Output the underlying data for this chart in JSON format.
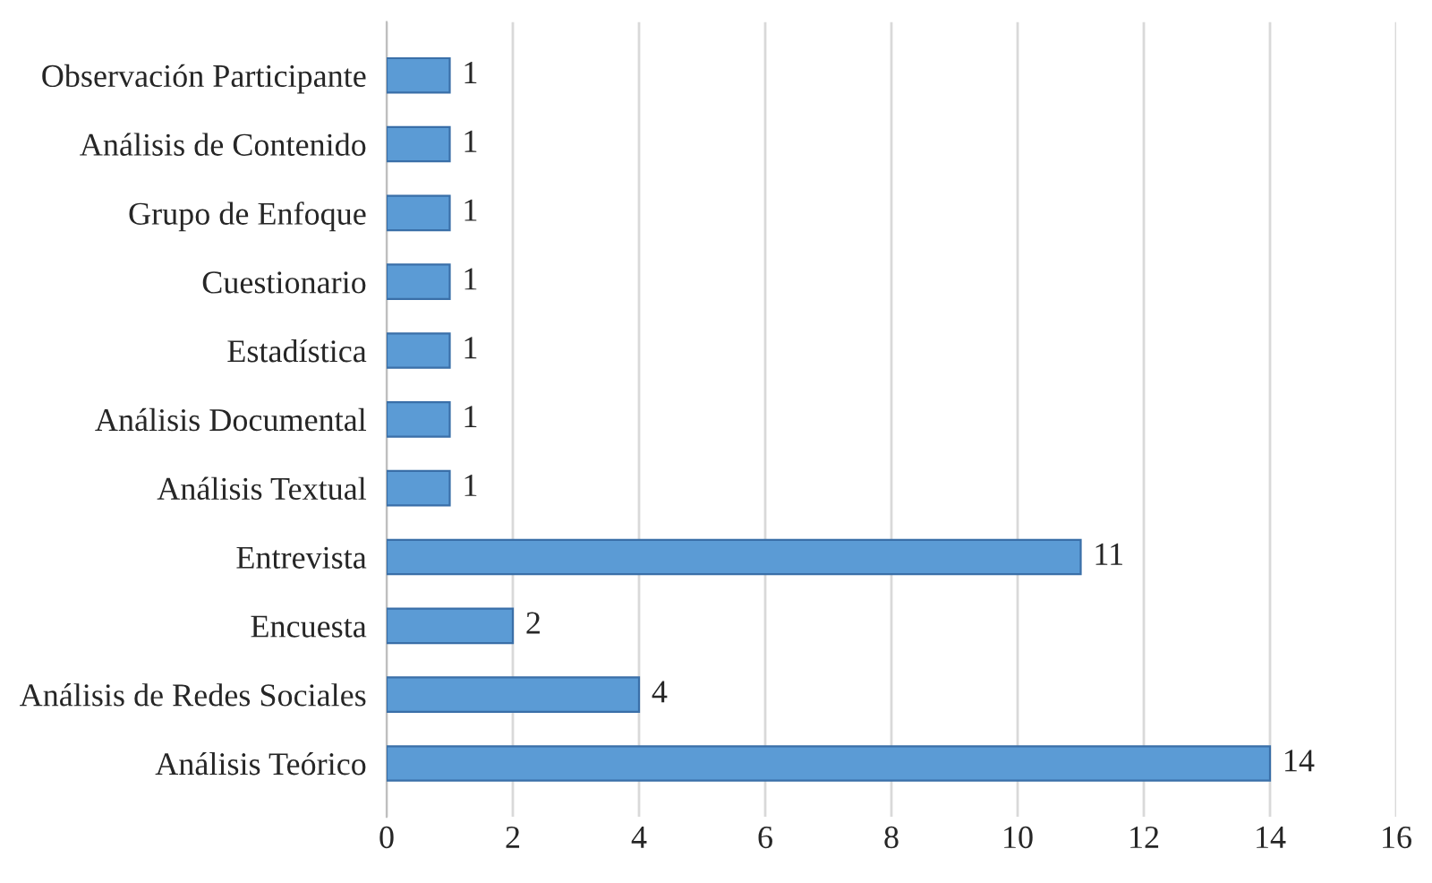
{
  "chart_data": {
    "type": "bar",
    "orientation": "horizontal",
    "categories": [
      "Observación Participante",
      "Análisis de Contenido",
      "Grupo de Enfoque",
      "Cuestionario",
      "Estadística",
      "Análisis Documental",
      "Análisis Textual",
      "Entrevista",
      "Encuesta",
      "Análisis de Redes Sociales",
      "Análisis Teórico"
    ],
    "values": [
      1,
      1,
      1,
      1,
      1,
      1,
      1,
      11,
      2,
      4,
      14
    ],
    "color": "#5b9bd5",
    "xlim": [
      0,
      16
    ],
    "xticks": [
      0,
      2,
      4,
      6,
      8,
      10,
      12,
      14,
      16
    ],
    "grid": "x",
    "data_labels": true,
    "legend": false
  }
}
